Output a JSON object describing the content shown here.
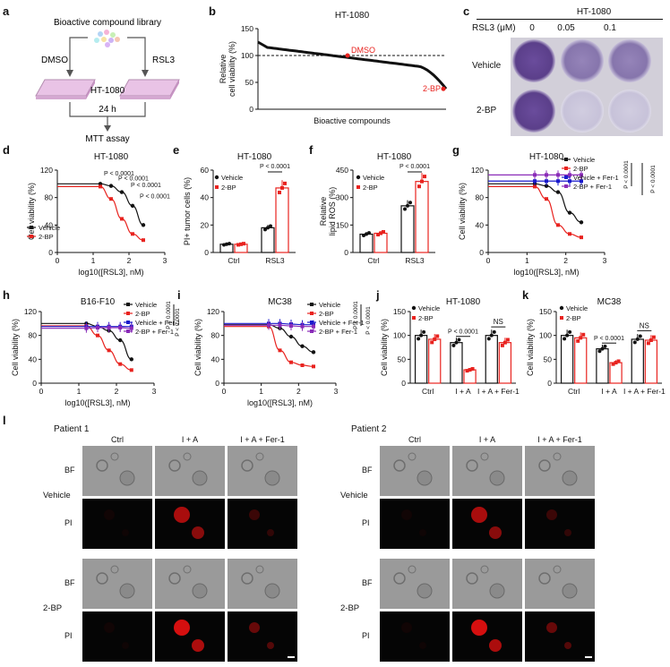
{
  "panel_labels": [
    "a",
    "b",
    "c",
    "d",
    "e",
    "f",
    "g",
    "h",
    "i",
    "j",
    "k",
    "l"
  ],
  "panel_a": {
    "library": "Bioactive compound library",
    "left_treatment": "DMSO",
    "right_treatment": "RSL3",
    "cell_line": "HT-1080",
    "time": "24 h",
    "assay": "MTT assay"
  },
  "colors": {
    "vehicle": "#111111",
    "bp": "#e8231f",
    "fer_vehicle": "#1a1acc",
    "fer_bp": "#8a2cb8",
    "purple_stain": "#6a4c9c",
    "fluor_red": "#e01010"
  },
  "panel_c": {
    "title": "HT-1080",
    "conc_label": "RSL3 (μM)",
    "concs": [
      "0",
      "0.05",
      "0.1"
    ],
    "rows": [
      "Vehicle",
      "2-BP"
    ]
  },
  "panel_l": {
    "patients": [
      "Patient 1",
      "Patient 2"
    ],
    "columns": [
      "Ctrl",
      "I + A",
      "I + A + Fer-1"
    ],
    "groups": [
      "Vehicle",
      "2-BP"
    ],
    "rows": [
      "BF",
      "PI"
    ]
  },
  "chart_data": [
    {
      "id": "b",
      "type": "line",
      "title": "HT-1080",
      "ylabel": "Relative\ncell viability (%)",
      "xlabel": "Bioactive compounds",
      "ylim": [
        0,
        150
      ],
      "yticks": [
        "0",
        "50",
        "100",
        "150"
      ],
      "annotations": [
        "DMSO",
        "2-BP"
      ],
      "reference_y": 100
    },
    {
      "id": "d",
      "type": "line",
      "title": "HT-1080",
      "ylabel": "Cell viability (%)",
      "xlabel": "log10([RSL3], nM)",
      "xlim": [
        0,
        3
      ],
      "ylim": [
        0,
        120
      ],
      "xticks": [
        "0",
        "1",
        "2",
        "3"
      ],
      "yticks": [
        "0",
        "40",
        "80",
        "120"
      ],
      "series": [
        {
          "name": "Vehicle",
          "x": [
            1.2,
            1.5,
            1.8,
            2.1,
            2.4
          ],
          "y": [
            100,
            97,
            88,
            68,
            40
          ]
        },
        {
          "name": "2-BP",
          "x": [
            1.2,
            1.5,
            1.8,
            2.1,
            2.4
          ],
          "y": [
            96,
            78,
            49,
            27,
            18
          ]
        }
      ],
      "pvalues": [
        "P < 0.0001",
        "P < 0.0001",
        "P < 0.0001",
        "P < 0.0001"
      ]
    },
    {
      "id": "e",
      "type": "bar",
      "title": "HT-1080",
      "ylabel": "PI+ tumor cells (%)",
      "categories": [
        "Ctrl",
        "RSL3"
      ],
      "ylim": [
        0,
        60
      ],
      "yticks": [
        "0",
        "20",
        "40",
        "60"
      ],
      "series": [
        {
          "name": "Vehicle",
          "values": [
            6,
            18
          ]
        },
        {
          "name": "2-BP",
          "values": [
            6,
            47
          ]
        }
      ],
      "pvalue": "P < 0.0001"
    },
    {
      "id": "f",
      "type": "bar",
      "title": "HT-1080",
      "ylabel": "Relative\nlipid ROS (%)",
      "categories": [
        "Ctrl",
        "RSL3"
      ],
      "ylim": [
        0,
        450
      ],
      "yticks": [
        "0",
        "150",
        "300",
        "450"
      ],
      "series": [
        {
          "name": "Vehicle",
          "values": [
            100,
            255
          ]
        },
        {
          "name": "2-BP",
          "values": [
            105,
            388
          ]
        }
      ],
      "pvalue": "P < 0.0001"
    },
    {
      "id": "g",
      "type": "line",
      "title": "HT-1080",
      "ylabel": "Cell viability (%)",
      "xlabel": "log10([RSL3], nM)",
      "xlim": [
        0,
        3
      ],
      "ylim": [
        0,
        120
      ],
      "xticks": [
        "0",
        "1",
        "2",
        "3"
      ],
      "yticks": [
        "0",
        "40",
        "80",
        "120"
      ],
      "series": [
        {
          "name": "Vehicle",
          "x": [
            1.2,
            1.5,
            1.8,
            2.1,
            2.4
          ],
          "y": [
            100,
            97,
            88,
            58,
            44
          ]
        },
        {
          "name": "2-BP",
          "x": [
            1.2,
            1.5,
            1.8,
            2.1,
            2.4
          ],
          "y": [
            96,
            78,
            40,
            27,
            22
          ]
        },
        {
          "name": "Vehicle + Fer-1",
          "x": [
            1.2,
            1.5,
            1.8,
            2.1,
            2.4
          ],
          "y": [
            104,
            104,
            104,
            104,
            104
          ]
        },
        {
          "name": "2-BP + Fer-1",
          "x": [
            1.2,
            1.5,
            1.8,
            2.1,
            2.4
          ],
          "y": [
            113,
            113,
            113,
            113,
            113
          ]
        }
      ],
      "pvalues": [
        "P < 0.0001",
        "P < 0.0001"
      ]
    },
    {
      "id": "h",
      "type": "line",
      "title": "B16-F10",
      "ylabel": "Cell viability (%)",
      "xlabel": "log10([RSL3], nM)",
      "xlim": [
        0,
        3
      ],
      "ylim": [
        0,
        120
      ],
      "xticks": [
        "0",
        "1",
        "2",
        "3"
      ],
      "yticks": [
        "0",
        "40",
        "80",
        "120"
      ],
      "series": [
        {
          "name": "Vehicle",
          "x": [
            1.2,
            1.5,
            1.8,
            2.1,
            2.4
          ],
          "y": [
            100,
            95,
            88,
            72,
            40
          ]
        },
        {
          "name": "2-BP",
          "x": [
            1.2,
            1.5,
            1.8,
            2.1,
            2.4
          ],
          "y": [
            96,
            80,
            55,
            32,
            22
          ]
        },
        {
          "name": "Vehicle + Fer-1",
          "x": [
            1.2,
            1.5,
            1.8,
            2.1,
            2.4
          ],
          "y": [
            95,
            95,
            95,
            95,
            95
          ]
        },
        {
          "name": "2-BP + Fer-1",
          "x": [
            1.2,
            1.5,
            1.8,
            2.1,
            2.4
          ],
          "y": [
            92,
            93,
            93,
            93,
            92
          ]
        }
      ],
      "pvalues": [
        "P < 0.0001",
        "P < 0.0001"
      ]
    },
    {
      "id": "i",
      "type": "line",
      "title": "MC38",
      "ylabel": "Cell viability (%)",
      "xlabel": "log10([RSL3], nM)",
      "xlim": [
        0,
        3
      ],
      "ylim": [
        0,
        120
      ],
      "xticks": [
        "0",
        "1",
        "2",
        "3"
      ],
      "yticks": [
        "0",
        "40",
        "80",
        "120"
      ],
      "series": [
        {
          "name": "Vehicle",
          "x": [
            1.2,
            1.5,
            1.8,
            2.1,
            2.4
          ],
          "y": [
            98,
            92,
            78,
            62,
            52
          ]
        },
        {
          "name": "2-BP",
          "x": [
            1.2,
            1.5,
            1.8,
            2.1,
            2.4
          ],
          "y": [
            95,
            55,
            35,
            30,
            28
          ]
        },
        {
          "name": "Vehicle + Fer-1",
          "x": [
            1.2,
            1.5,
            1.8,
            2.1,
            2.4
          ],
          "y": [
            100,
            100,
            99,
            98,
            98
          ]
        },
        {
          "name": "2-BP + Fer-1",
          "x": [
            1.2,
            1.5,
            1.8,
            2.1,
            2.4
          ],
          "y": [
            97,
            97,
            96,
            95,
            95
          ]
        }
      ],
      "pvalues": [
        "P < 0.0001",
        "P < 0.0001"
      ]
    },
    {
      "id": "j",
      "type": "bar",
      "title": "HT-1080",
      "ylabel": "Cell viability (%)",
      "categories": [
        "Ctrl",
        "I + A",
        "I + A + Fer-1"
      ],
      "ylim": [
        0,
        150
      ],
      "yticks": [
        "0",
        "50",
        "100",
        "150"
      ],
      "series": [
        {
          "name": "Vehicle",
          "values": [
            100,
            85,
            100
          ]
        },
        {
          "name": "2-BP",
          "values": [
            92,
            28,
            85
          ]
        }
      ],
      "annotations": [
        "P < 0.0001",
        "NS"
      ]
    },
    {
      "id": "k",
      "type": "bar",
      "title": "MC38",
      "ylabel": "Cell viability (%)",
      "categories": [
        "Ctrl",
        "I + A",
        "I + A + Fer-1"
      ],
      "ylim": [
        0,
        150
      ],
      "yticks": [
        "0",
        "50",
        "100",
        "150"
      ],
      "series": [
        {
          "name": "Vehicle",
          "values": [
            100,
            72,
            92
          ]
        },
        {
          "name": "2-BP",
          "values": [
            95,
            43,
            90
          ]
        }
      ],
      "annotations": [
        "P < 0.0001",
        "NS"
      ]
    }
  ]
}
